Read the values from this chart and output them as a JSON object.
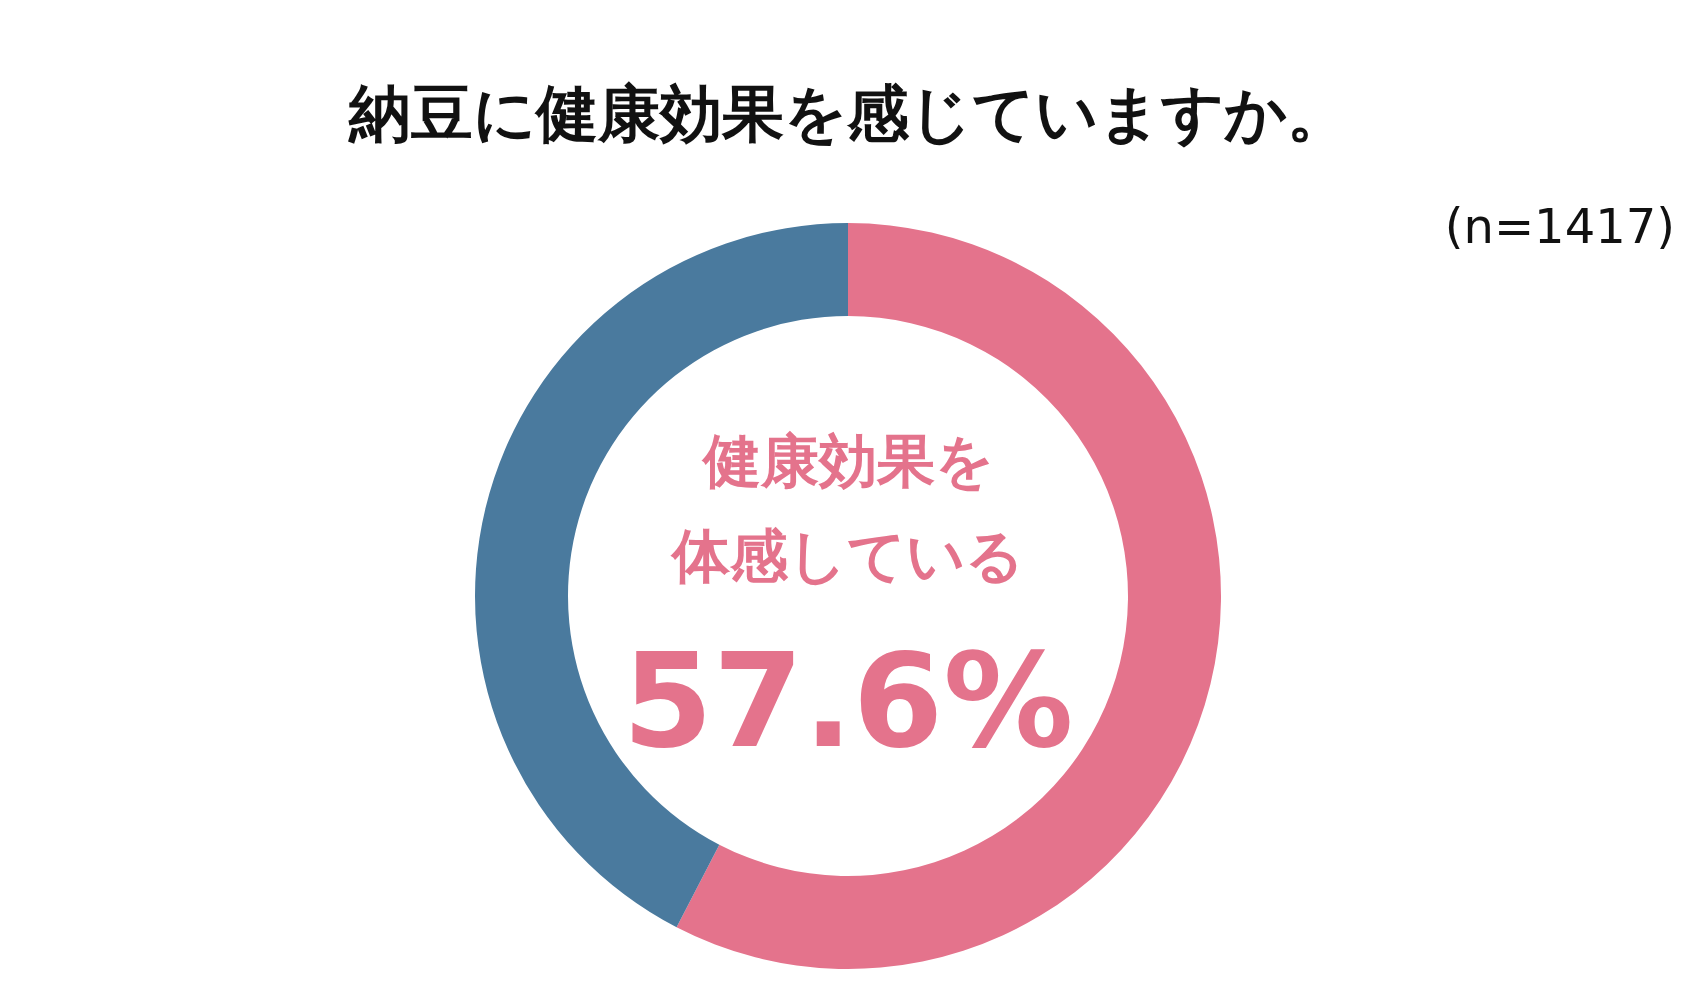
{
  "chart_data": {
    "type": "donut",
    "title": "納豆に健康効果を感じていますか。",
    "annotations": [
      "(n=1417)"
    ],
    "categories": [
      "健康効果を体感している",
      null
    ],
    "values": [
      57.6,
      42.4
    ],
    "colors": [
      "#e4738c",
      "#4a7a9e"
    ],
    "value_labels": [
      "57.6%",
      null
    ],
    "legend": false
  }
}
